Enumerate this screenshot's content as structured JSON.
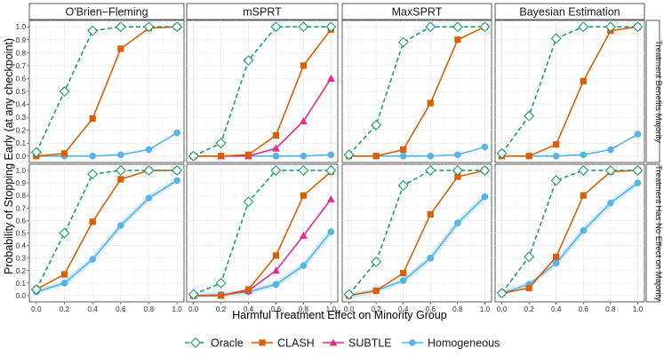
{
  "chart_data": {
    "type": "line",
    "xlabel": "Harmful Treatment Effect on Minority Group",
    "ylabel": "Probability of Stopping Early (at any checkpoint)",
    "x": [
      0.0,
      0.2,
      0.4,
      0.6,
      0.8,
      1.0
    ],
    "x_tick_labels": [
      "0.0",
      "0.2",
      "0.4",
      "0.6",
      "0.8",
      "1.0"
    ],
    "ylim": [
      0,
      1
    ],
    "y_ticks": [
      0,
      0.1,
      0.2,
      0.3,
      0.4,
      0.5,
      0.6,
      0.7,
      0.8,
      0.9,
      1.0
    ],
    "y_tick_labels": [
      "0.0",
      "0.1",
      "0.2",
      "0.3",
      "0.4",
      "0.5",
      "0.6",
      "0.7",
      "0.8",
      "0.9",
      "1.0"
    ],
    "columns": [
      "O'Brien−Fleming",
      "mSPRT",
      "MaxSPRT",
      "Bayesian Estimation"
    ],
    "rows": [
      "Treatment Benefits Majority",
      "Treatment Has No Effect on Majority"
    ],
    "legend": {
      "position": "bottom",
      "entries": [
        {
          "name": "Oracle",
          "color": "#1b9e77",
          "marker": "diamond-open",
          "dash": true
        },
        {
          "name": "CLASH",
          "color": "#d95f02",
          "marker": "square",
          "dash": false
        },
        {
          "name": "SUBTLE",
          "color": "#e7298a",
          "marker": "triangle",
          "dash": false
        },
        {
          "name": "Homogeneous",
          "color": "#56b4e9",
          "marker": "circle",
          "dash": false
        }
      ]
    },
    "panels": [
      {
        "row": 0,
        "col": 0,
        "series": [
          {
            "name": "Oracle",
            "values": [
              0.03,
              0.5,
              0.97,
              1.0,
              1.0,
              1.0
            ]
          },
          {
            "name": "CLASH",
            "values": [
              0.0,
              0.02,
              0.29,
              0.83,
              0.99,
              1.0
            ]
          },
          {
            "name": "Homogeneous",
            "values": [
              0.0,
              0.0,
              0.0,
              0.01,
              0.05,
              0.18
            ]
          }
        ]
      },
      {
        "row": 0,
        "col": 1,
        "series": [
          {
            "name": "Oracle",
            "values": [
              0.0,
              0.1,
              0.74,
              1.0,
              1.0,
              1.0
            ]
          },
          {
            "name": "CLASH",
            "values": [
              0.0,
              0.0,
              0.01,
              0.16,
              0.7,
              0.98
            ]
          },
          {
            "name": "SUBTLE",
            "values": [
              0.0,
              0.0,
              0.0,
              0.06,
              0.27,
              0.6
            ]
          },
          {
            "name": "Homogeneous",
            "values": [
              0.0,
              0.0,
              0.0,
              0.0,
              0.0,
              0.01
            ]
          }
        ]
      },
      {
        "row": 0,
        "col": 2,
        "series": [
          {
            "name": "Oracle",
            "values": [
              0.01,
              0.24,
              0.88,
              1.0,
              1.0,
              1.0
            ]
          },
          {
            "name": "CLASH",
            "values": [
              0.0,
              0.0,
              0.05,
              0.41,
              0.9,
              1.0
            ]
          },
          {
            "name": "Homogeneous",
            "values": [
              0.0,
              0.0,
              0.0,
              0.0,
              0.01,
              0.07
            ]
          }
        ]
      },
      {
        "row": 0,
        "col": 3,
        "series": [
          {
            "name": "Oracle",
            "values": [
              0.02,
              0.31,
              0.91,
              1.0,
              1.0,
              1.0
            ]
          },
          {
            "name": "CLASH",
            "values": [
              0.0,
              0.0,
              0.09,
              0.58,
              0.97,
              1.0
            ]
          },
          {
            "name": "Homogeneous",
            "values": [
              0.0,
              0.0,
              0.0,
              0.01,
              0.05,
              0.17
            ]
          }
        ]
      },
      {
        "row": 1,
        "col": 0,
        "series": [
          {
            "name": "Oracle",
            "values": [
              0.05,
              0.5,
              0.97,
              1.0,
              1.0,
              1.0
            ]
          },
          {
            "name": "CLASH",
            "values": [
              0.05,
              0.17,
              0.59,
              0.93,
              1.0,
              1.0
            ]
          },
          {
            "name": "Homogeneous",
            "values": [
              0.03,
              0.1,
              0.29,
              0.56,
              0.78,
              0.92
            ]
          }
        ]
      },
      {
        "row": 1,
        "col": 1,
        "series": [
          {
            "name": "Oracle",
            "values": [
              0.01,
              0.1,
              0.75,
              1.0,
              1.0,
              1.0
            ]
          },
          {
            "name": "CLASH",
            "values": [
              0.0,
              0.0,
              0.05,
              0.32,
              0.8,
              0.99
            ]
          },
          {
            "name": "SUBTLE",
            "values": [
              0.0,
              0.0,
              0.04,
              0.2,
              0.48,
              0.77
            ]
          },
          {
            "name": "Homogeneous",
            "values": [
              0.0,
              0.01,
              0.03,
              0.09,
              0.24,
              0.51
            ]
          }
        ]
      },
      {
        "row": 1,
        "col": 2,
        "series": [
          {
            "name": "Oracle",
            "values": [
              0.01,
              0.27,
              0.88,
              1.0,
              1.0,
              1.0
            ]
          },
          {
            "name": "CLASH",
            "values": [
              0.0,
              0.04,
              0.18,
              0.65,
              0.95,
              1.0
            ]
          },
          {
            "name": "Homogeneous",
            "values": [
              0.0,
              0.04,
              0.12,
              0.3,
              0.58,
              0.79
            ]
          }
        ]
      },
      {
        "row": 1,
        "col": 3,
        "series": [
          {
            "name": "Oracle",
            "values": [
              0.02,
              0.31,
              0.92,
              1.0,
              1.0,
              1.0
            ]
          },
          {
            "name": "CLASH",
            "values": [
              0.02,
              0.06,
              0.31,
              0.8,
              0.99,
              1.0
            ]
          },
          {
            "name": "Homogeneous",
            "values": [
              0.02,
              0.09,
              0.26,
              0.52,
              0.74,
              0.9
            ]
          }
        ]
      }
    ]
  }
}
